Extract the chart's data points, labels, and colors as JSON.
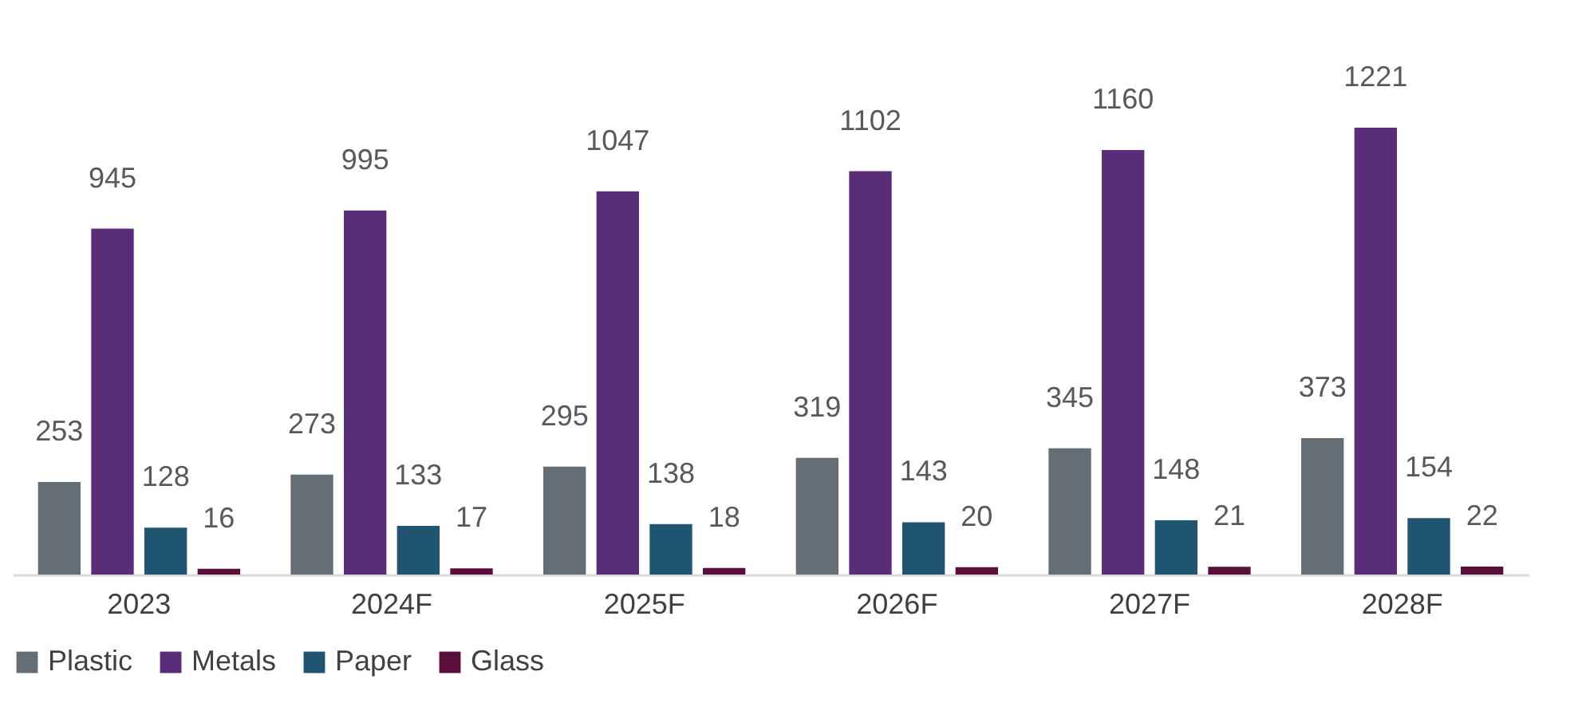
{
  "chart_data": {
    "type": "bar",
    "categories": [
      "2023",
      "2024F",
      "2025F",
      "2026F",
      "2027F",
      "2028F"
    ],
    "series": [
      {
        "name": "Plastic",
        "color": "#656d75",
        "values": [
          253,
          273,
          295,
          319,
          345,
          373
        ]
      },
      {
        "name": "Metals",
        "color": "#5a2d7a",
        "values": [
          945,
          995,
          1047,
          1102,
          1160,
          1221
        ]
      },
      {
        "name": "Paper",
        "color": "#1f5570",
        "values": [
          128,
          133,
          138,
          143,
          148,
          154
        ]
      },
      {
        "name": "Glass",
        "color": "#5a0f3a",
        "values": [
          16,
          17,
          18,
          20,
          21,
          22
        ]
      }
    ],
    "data_labels": true,
    "legend": "bottom",
    "grid": false
  }
}
